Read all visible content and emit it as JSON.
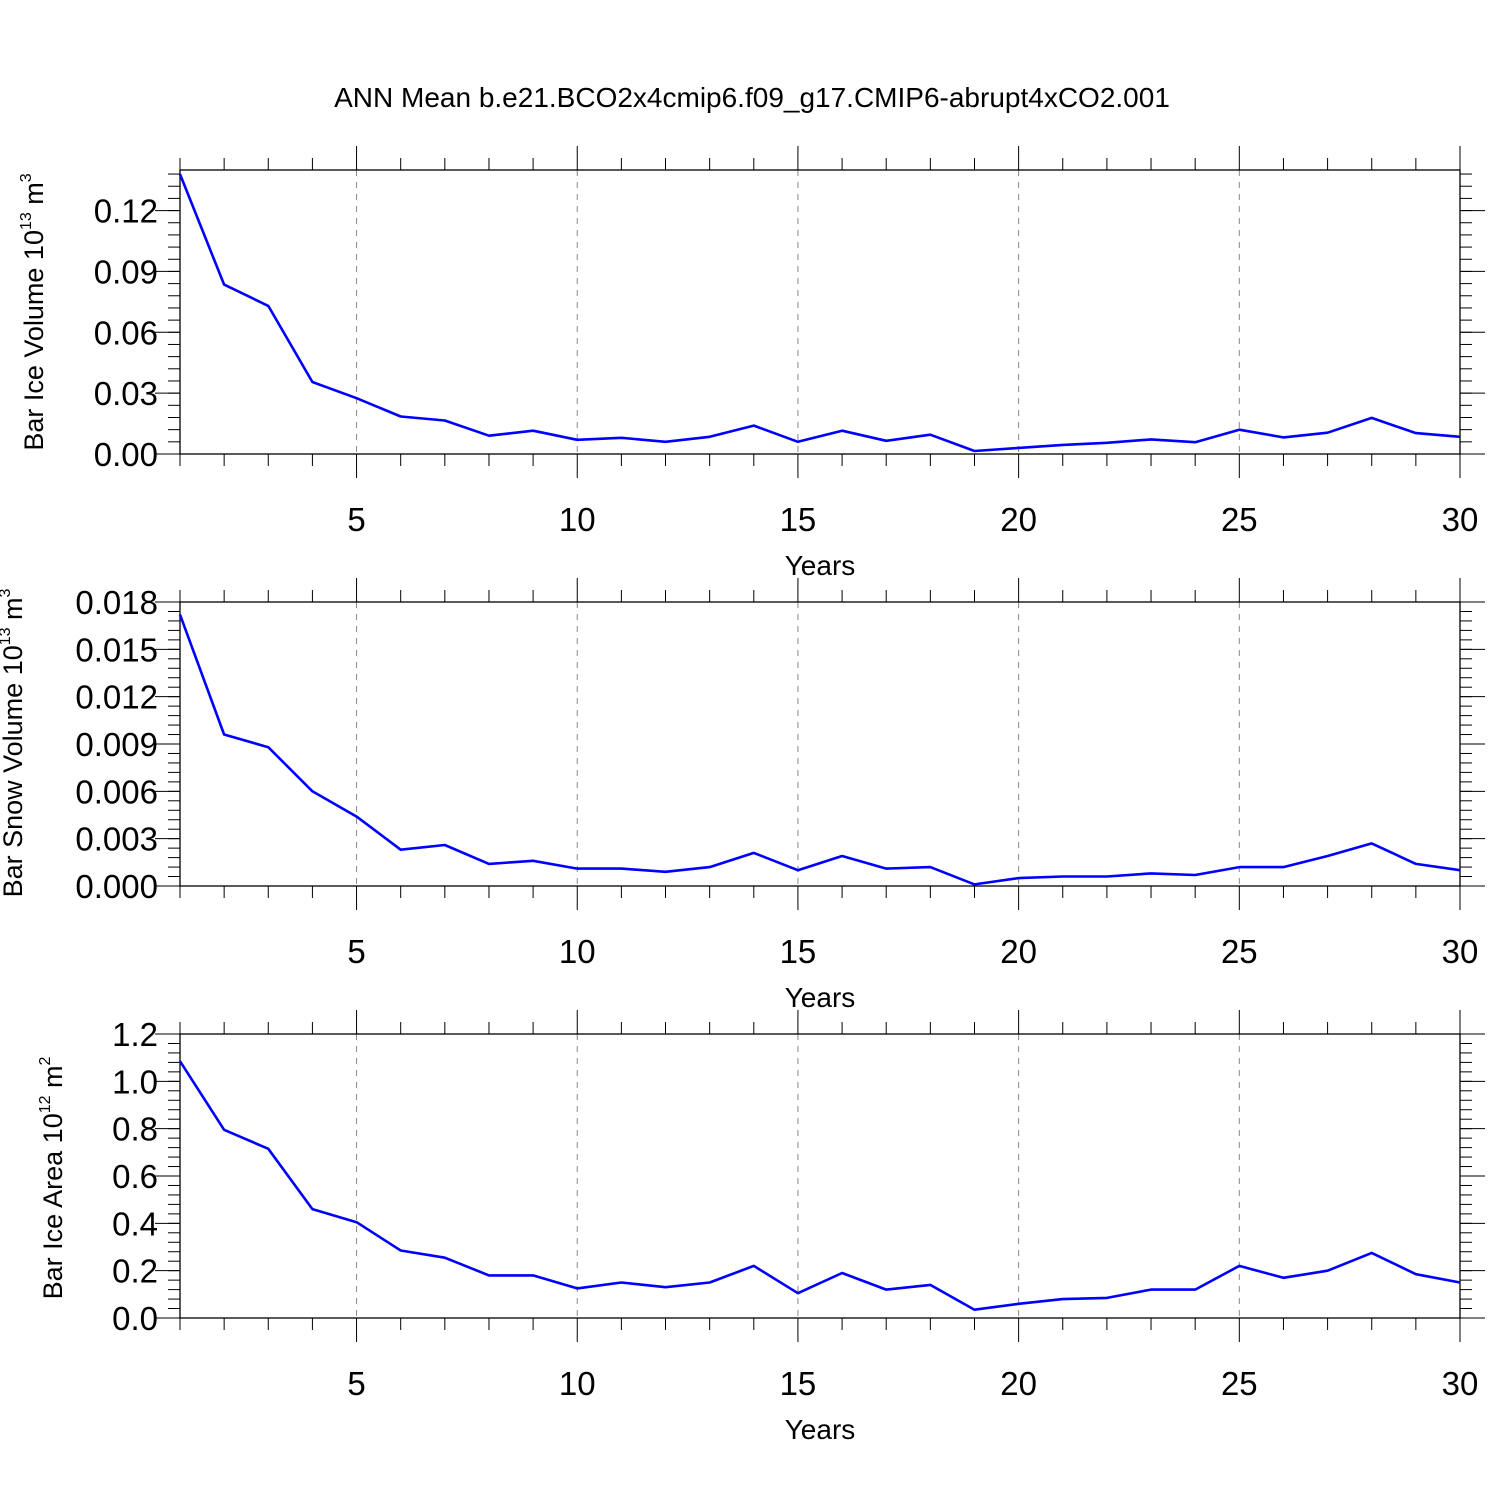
{
  "title": "ANN Mean b.e21.BCO2x4cmip6.f09_g17.CMIP6-abrupt4xCO2.001",
  "colors": {
    "line": "#0000ff",
    "axis": "#000000",
    "grid": "#888888"
  },
  "chart_data": [
    {
      "type": "line",
      "ylabel": {
        "base": "Bar Ice Volume 10",
        "exp1": "13",
        "unit": " m",
        "exp2": "3"
      },
      "xlabel": "Years",
      "xlim": [
        1,
        30
      ],
      "ylim": [
        0,
        0.14
      ],
      "xticks": [
        5,
        10,
        15,
        20,
        25,
        30
      ],
      "xtick_labels": [
        "5",
        "10",
        "15",
        "20",
        "25",
        "30"
      ],
      "yticks": [
        0,
        0.03,
        0.06,
        0.09,
        0.12
      ],
      "ytick_labels": [
        "0.00",
        "0.03",
        "0.06",
        "0.09",
        "0.12"
      ],
      "yminor": 0.006,
      "grid": "vertical dashed",
      "x": [
        1,
        2,
        3,
        4,
        5,
        6,
        7,
        8,
        9,
        10,
        11,
        12,
        13,
        14,
        15,
        16,
        17,
        18,
        19,
        20,
        21,
        22,
        23,
        24,
        25,
        26,
        27,
        28,
        29,
        30
      ],
      "values": [
        0.138,
        0.0835,
        0.073,
        0.0355,
        0.0275,
        0.0185,
        0.0165,
        0.009,
        0.0115,
        0.007,
        0.008,
        0.006,
        0.0085,
        0.014,
        0.006,
        0.0115,
        0.0065,
        0.0095,
        0.0015,
        0.003,
        0.0045,
        0.0055,
        0.0072,
        0.0058,
        0.012,
        0.0082,
        0.0105,
        0.0178,
        0.0103,
        0.0085
      ]
    },
    {
      "type": "line",
      "ylabel": {
        "base": "Bar Snow Volume 10",
        "exp1": "13",
        "unit": " m",
        "exp2": "3"
      },
      "xlabel": "Years",
      "xlim": [
        1,
        30
      ],
      "ylim": [
        0,
        0.018
      ],
      "xticks": [
        5,
        10,
        15,
        20,
        25,
        30
      ],
      "xtick_labels": [
        "5",
        "10",
        "15",
        "20",
        "25",
        "30"
      ],
      "yticks": [
        0,
        0.003,
        0.006,
        0.009,
        0.012,
        0.015,
        0.018
      ],
      "ytick_labels": [
        "0.000",
        "0.003",
        "0.006",
        "0.009",
        "0.012",
        "0.015",
        "0.018"
      ],
      "yminor": 0.0006,
      "grid": "vertical dashed",
      "x": [
        1,
        2,
        3,
        4,
        5,
        6,
        7,
        8,
        9,
        10,
        11,
        12,
        13,
        14,
        15,
        16,
        17,
        18,
        19,
        20,
        21,
        22,
        23,
        24,
        25,
        26,
        27,
        28,
        29,
        30
      ],
      "values": [
        0.0172,
        0.0096,
        0.0088,
        0.006,
        0.0044,
        0.0023,
        0.0026,
        0.0014,
        0.0016,
        0.0011,
        0.0011,
        0.0009,
        0.0012,
        0.0021,
        0.001,
        0.0019,
        0.0011,
        0.0012,
        0.0001,
        0.0005,
        0.0006,
        0.0006,
        0.0008,
        0.0007,
        0.0012,
        0.0012,
        0.0019,
        0.0027,
        0.0014,
        0.001
      ]
    },
    {
      "type": "line",
      "ylabel": {
        "base": "Bar Ice Area 10",
        "exp1": "12",
        "unit": " m",
        "exp2": "2"
      },
      "xlabel": "Years",
      "xlim": [
        1,
        30
      ],
      "ylim": [
        0,
        1.2
      ],
      "xticks": [
        5,
        10,
        15,
        20,
        25,
        30
      ],
      "xtick_labels": [
        "5",
        "10",
        "15",
        "20",
        "25",
        "30"
      ],
      "yticks": [
        0,
        0.2,
        0.4,
        0.6,
        0.8,
        1.0,
        1.2
      ],
      "ytick_labels": [
        "0.0",
        "0.2",
        "0.4",
        "0.6",
        "0.8",
        "1.0",
        "1.2"
      ],
      "yminor": 0.04,
      "grid": "vertical dashed",
      "x": [
        1,
        2,
        3,
        4,
        5,
        6,
        7,
        8,
        9,
        10,
        11,
        12,
        13,
        14,
        15,
        16,
        17,
        18,
        19,
        20,
        21,
        22,
        23,
        24,
        25,
        26,
        27,
        28,
        29,
        30
      ],
      "values": [
        1.085,
        0.795,
        0.715,
        0.46,
        0.405,
        0.285,
        0.255,
        0.18,
        0.18,
        0.125,
        0.15,
        0.13,
        0.15,
        0.22,
        0.105,
        0.19,
        0.12,
        0.14,
        0.035,
        0.06,
        0.08,
        0.085,
        0.12,
        0.12,
        0.22,
        0.17,
        0.2,
        0.275,
        0.185,
        0.15
      ]
    }
  ]
}
